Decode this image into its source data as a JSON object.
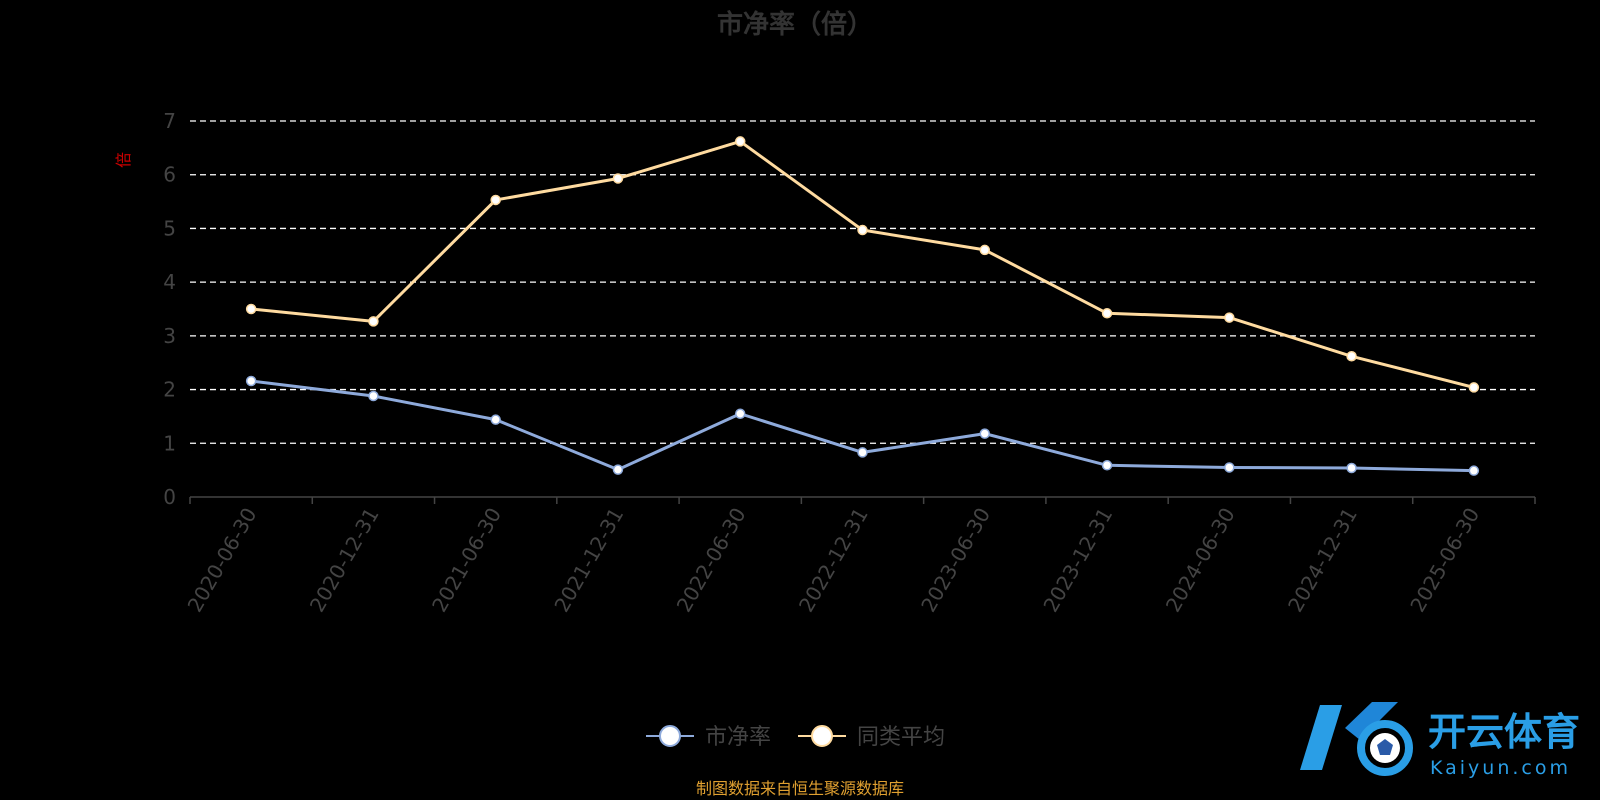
{
  "chart_data": {
    "type": "line",
    "title": "市净率（倍）",
    "ylabel": "倍",
    "ylim": [
      0,
      7
    ],
    "yticks": [
      "0",
      "1",
      "2",
      "3",
      "4",
      "5",
      "6",
      "7"
    ],
    "grid": "dashed-horizontal",
    "legend_position": "bottom-center",
    "categories": [
      "2020-06-30",
      "2020-12-31",
      "2021-06-30",
      "2021-12-31",
      "2022-06-30",
      "2022-12-31",
      "2023-06-30",
      "2023-12-31",
      "2024-06-30",
      "2024-12-31",
      "2025-06-30"
    ],
    "series": [
      {
        "name": "市净率",
        "color": "#8eaadb",
        "values": [
          2.16,
          1.88,
          1.44,
          0.51,
          1.55,
          0.83,
          1.18,
          0.59,
          0.55,
          0.54,
          0.49
        ]
      },
      {
        "name": "同类平均",
        "color": "#ffdba0",
        "values": [
          3.5,
          3.27,
          5.53,
          5.93,
          6.62,
          4.97,
          4.6,
          3.42,
          3.34,
          2.62,
          2.04
        ]
      }
    ]
  },
  "source": "制图数据来自恒生聚源数据库",
  "watermark": {
    "brand_cn": "开云体育",
    "brand_en": "Kaiyun.com"
  },
  "colors": {
    "title": "#333333",
    "axis_text": "#444444",
    "unit": "#cc0000",
    "source": "#e0a030",
    "brand": "#2a9ee6",
    "grid": "#ffffff"
  }
}
